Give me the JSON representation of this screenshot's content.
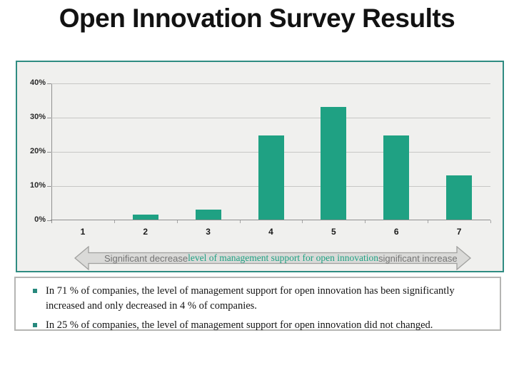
{
  "slide": {
    "title": "Open Innovation Survey Results"
  },
  "chart_data": {
    "type": "bar",
    "title": "",
    "xlabel": "",
    "ylabel": "",
    "categories": [
      "1",
      "2",
      "3",
      "4",
      "5",
      "6",
      "7"
    ],
    "values": [
      0,
      1.5,
      3,
      24.5,
      33,
      24.5,
      13
    ],
    "ylim": [
      0,
      40
    ],
    "yticks": [
      "0%",
      "10%",
      "20%",
      "30%",
      "40%"
    ],
    "grid": true,
    "legend": false,
    "bar_color": "#1fa183",
    "plot_background": "#f0f0ee"
  },
  "axis_arrow": {
    "left_label": "Significant decrease",
    "center_label": "level of management support for open innovation",
    "right_label": "significant increase"
  },
  "notes": {
    "items": [
      "In 71 % of companies, the level of management support for open innovation has been significantly increased and only decreased in 4 % of companies.",
      "In 25 % of companies, the level of management support for open innovation did not changed."
    ]
  },
  "colors": {
    "accent_teal": "#1fa183",
    "panel_border": "#2f8c82",
    "notes_border": "#b5b5b3",
    "arrow_fill": "#dadad8",
    "arrow_border": "#a0a09e",
    "muted_text": "#747474"
  }
}
